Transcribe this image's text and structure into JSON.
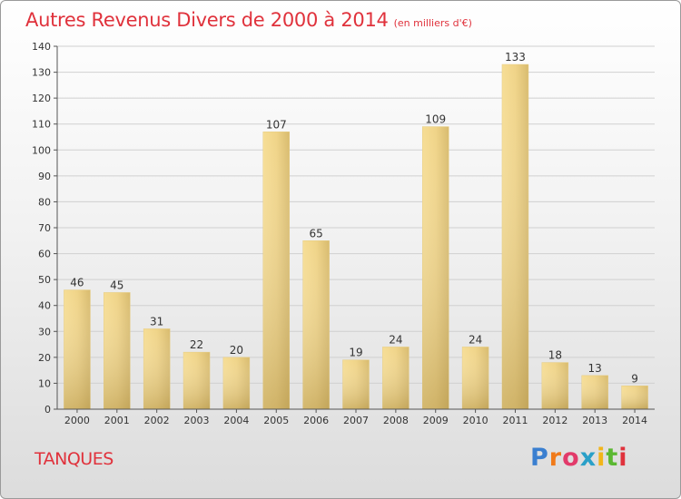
{
  "header": {
    "title": "Autres Revenus Divers de 2000 à 2014",
    "unit": "(en milliers d'€)"
  },
  "footer": {
    "town": "TANQUES",
    "logo_letters": [
      "P",
      "r",
      "o",
      "x",
      "i",
      "t",
      "i"
    ]
  },
  "colors": {
    "title": "#e0323c",
    "bar_light": "#f5dd98",
    "bar_dark": "#c9a860",
    "axis": "#555555",
    "grid": "#cfcfcf"
  },
  "chart_data": {
    "type": "bar",
    "title": "Autres Revenus Divers de 2000 à 2014",
    "xlabel": "",
    "ylabel": "",
    "categories": [
      "2000",
      "2001",
      "2002",
      "2003",
      "2004",
      "2005",
      "2006",
      "2007",
      "2008",
      "2009",
      "2010",
      "2011",
      "2012",
      "2013",
      "2014"
    ],
    "values": [
      46,
      45,
      31,
      22,
      20,
      107,
      65,
      19,
      24,
      109,
      24,
      133,
      18,
      13,
      9
    ],
    "ylim": [
      0,
      140
    ],
    "yticks": [
      0,
      10,
      20,
      30,
      40,
      50,
      60,
      70,
      80,
      90,
      100,
      110,
      120,
      130,
      140
    ],
    "grid": true,
    "data_labels": true
  }
}
